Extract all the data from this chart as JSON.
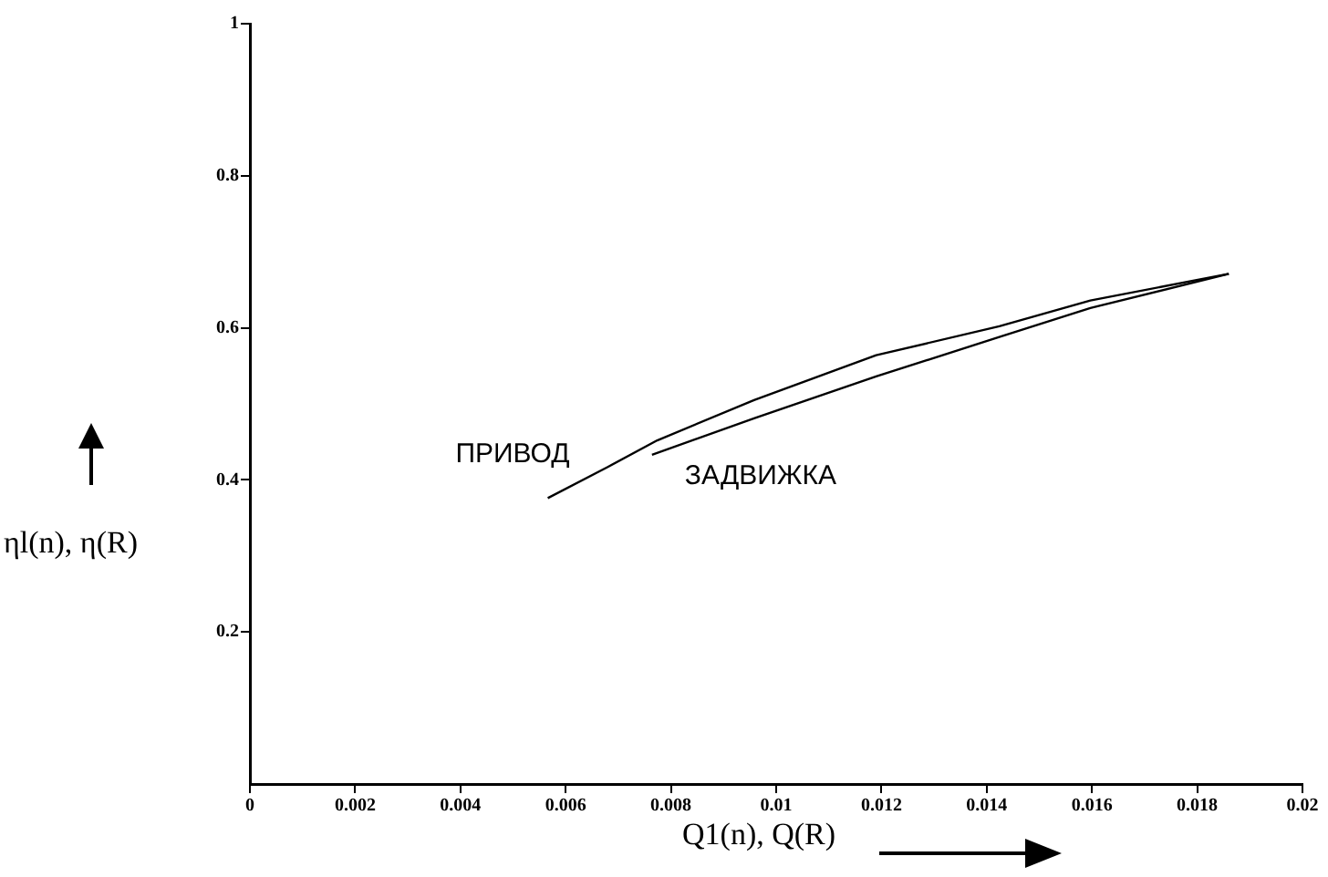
{
  "chart_data": {
    "type": "line",
    "xlabel": "Q1(n), Q(R)",
    "ylabel": "ηl(n), η(R)",
    "xlim": [
      0,
      0.02
    ],
    "xticks": [
      0,
      0.002,
      0.004,
      0.006,
      0.008,
      0.01,
      0.012,
      0.014,
      0.016,
      0.018,
      0.02
    ],
    "ylim": [
      0,
      1
    ],
    "yticks": [
      0.2,
      0.4,
      0.6,
      0.8,
      1
    ],
    "grid": false,
    "legend": false,
    "marker": "none",
    "line_style": "solid",
    "series": [
      {
        "name": "ПРИВОД",
        "color": "#000000",
        "x": [
          0.00566,
          0.0068,
          0.00774,
          0.00958,
          0.0119,
          0.01424,
          0.01597,
          0.0186
        ],
        "values": [
          0.376,
          0.417,
          0.452,
          0.505,
          0.564,
          0.602,
          0.636,
          0.671
        ]
      },
      {
        "name": "ЗАДВИЖКА",
        "color": "#000000",
        "x": [
          0.00764,
          0.00958,
          0.0119,
          0.01424,
          0.01597,
          0.0186
        ],
        "values": [
          0.433,
          0.481,
          0.536,
          0.588,
          0.626,
          0.671
        ]
      }
    ]
  }
}
